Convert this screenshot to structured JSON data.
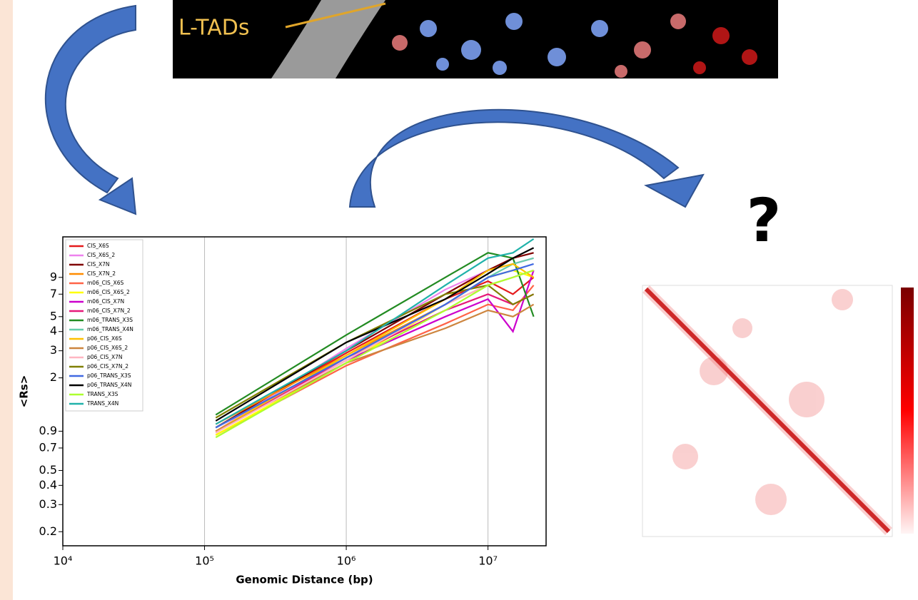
{
  "image_label": "L-TADs",
  "question": "?",
  "chart_data": {
    "type": "line",
    "log_x": true,
    "log_y": true,
    "grid": true,
    "xlabel": "Genomic Distance (bp)",
    "ylabel": "<Rs>",
    "x": [
      120000,
      1000000,
      5000000,
      10000000,
      15000000,
      21000000
    ],
    "xlim": [
      10000,
      25700000
    ],
    "xticks": [
      {
        "value": 10000,
        "label": "10⁴"
      },
      {
        "value": 100000,
        "label": "10⁵"
      },
      {
        "value": 1000000,
        "label": "10⁶"
      },
      {
        "value": 10000000,
        "label": "10⁷"
      }
    ],
    "ylim": [
      0.162,
      16.5
    ],
    "yticks": [
      0.2,
      0.3,
      0.4,
      0.5,
      0.7,
      0.9,
      2,
      3,
      4,
      5,
      7,
      9
    ],
    "legend": "upper left",
    "series": [
      {
        "name": "CIS_X6S",
        "color": "#e41a1c",
        "values": [
          0.95,
          2.9,
          6.5,
          8.5,
          7,
          9
        ]
      },
      {
        "name": "CIS_X6S_2",
        "color": "#ee82ee",
        "values": [
          0.9,
          3.1,
          7.5,
          10,
          11,
          12
        ]
      },
      {
        "name": "CIS_X7N",
        "color": "#800000",
        "values": [
          0.95,
          3,
          7,
          10,
          12,
          13
        ]
      },
      {
        "name": "CIS_X7N_2",
        "color": "#ff8c00",
        "values": [
          1.0,
          2.8,
          6,
          8,
          9,
          10
        ]
      },
      {
        "name": "m06_CIS_X6S",
        "color": "#ff6347",
        "values": [
          0.85,
          2.4,
          4.5,
          6,
          5.5,
          8
        ]
      },
      {
        "name": "m06_CIS_X6S_2",
        "color": "#ffff00",
        "values": [
          0.85,
          2.5,
          6,
          9,
          10,
          9
        ]
      },
      {
        "name": "m06_CIS_X7N",
        "color": "#cc00cc",
        "values": [
          0.9,
          2.6,
          5,
          6.5,
          4,
          10
        ]
      },
      {
        "name": "m06_CIS_X7N_2",
        "color": "#e6197a",
        "values": [
          0.88,
          2.7,
          5.5,
          7,
          6,
          7
        ]
      },
      {
        "name": "m06_TRANS_X3S",
        "color": "#228b22",
        "values": [
          1.15,
          3.8,
          9,
          13,
          12,
          5
        ]
      },
      {
        "name": "m06_TRANS_X4N",
        "color": "#66cdaa",
        "values": [
          0.95,
          2.7,
          6,
          9,
          11,
          12
        ]
      },
      {
        "name": "p06_CIS_X6S",
        "color": "#ffc000",
        "values": [
          0.9,
          2.8,
          6.5,
          10,
          11,
          9
        ]
      },
      {
        "name": "p06_CIS_X6S_2",
        "color": "#cd853f",
        "values": [
          0.9,
          2.5,
          4.2,
          5.5,
          5,
          6
        ]
      },
      {
        "name": "p06_CIS_X7N",
        "color": "#ffb6c1",
        "values": [
          0.88,
          2.6,
          6,
          8,
          9,
          10
        ]
      },
      {
        "name": "p06_CIS_X7N_2",
        "color": "#808000",
        "values": [
          1.1,
          3.4,
          7,
          8,
          6,
          7
        ]
      },
      {
        "name": "p06_TRANS_X3S",
        "color": "#4169e1",
        "values": [
          0.95,
          2.7,
          6,
          9,
          10,
          11
        ]
      },
      {
        "name": "p06_TRANS_X4N",
        "color": "#000000",
        "values": [
          1.05,
          3.4,
          6.5,
          9.5,
          12,
          14
        ]
      },
      {
        "name": "TRANS_X3S",
        "color": "#adff2f",
        "values": [
          0.82,
          2.5,
          5.5,
          8,
          9,
          10
        ]
      },
      {
        "name": "TRANS_X4N",
        "color": "#20b2aa",
        "values": [
          1.0,
          3.0,
          8,
          12,
          13,
          16
        ]
      }
    ]
  }
}
